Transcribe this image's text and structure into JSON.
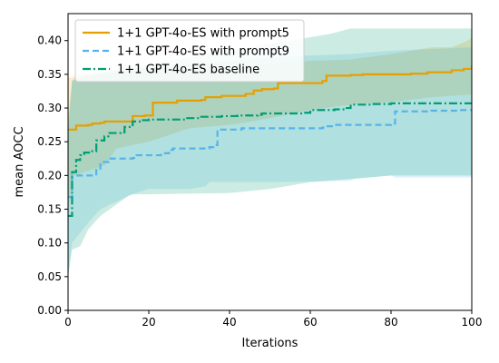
{
  "chart_data": {
    "type": "line",
    "title": "",
    "xlabel": "Iterations",
    "ylabel": "mean AOCC",
    "xlim": [
      0,
      100
    ],
    "ylim": [
      0,
      0.44
    ],
    "xticks": [
      0,
      20,
      40,
      60,
      80,
      100
    ],
    "yticks": [
      0.0,
      0.05,
      0.1,
      0.15,
      0.2,
      0.25,
      0.3,
      0.35,
      0.4
    ],
    "xtick_labels": [
      "0",
      "20",
      "40",
      "60",
      "80",
      "100"
    ],
    "ytick_labels": [
      "0.00",
      "0.05",
      "0.10",
      "0.15",
      "0.20",
      "0.25",
      "0.30",
      "0.35",
      "0.40"
    ],
    "grid": false,
    "legend_position": "top-left",
    "series": [
      {
        "name": "1+1 GPT-4o-ES with prompt5",
        "color": "#E69F00",
        "style": "solid",
        "mean": [
          [
            0,
            0.268
          ],
          [
            1,
            0.268
          ],
          [
            2,
            0.274
          ],
          [
            5,
            0.275
          ],
          [
            6,
            0.277
          ],
          [
            8,
            0.278
          ],
          [
            9,
            0.28
          ],
          [
            15,
            0.28
          ],
          [
            16,
            0.288
          ],
          [
            19,
            0.289
          ],
          [
            21,
            0.308
          ],
          [
            26,
            0.308
          ],
          [
            27,
            0.311
          ],
          [
            33,
            0.312
          ],
          [
            34,
            0.316
          ],
          [
            38,
            0.318
          ],
          [
            44,
            0.321
          ],
          [
            46,
            0.326
          ],
          [
            48,
            0.328
          ],
          [
            51,
            0.329
          ],
          [
            52,
            0.337
          ],
          [
            60,
            0.337
          ],
          [
            63,
            0.34
          ],
          [
            64,
            0.348
          ],
          [
            70,
            0.349
          ],
          [
            73,
            0.35
          ],
          [
            85,
            0.351
          ],
          [
            89,
            0.353
          ],
          [
            95,
            0.356
          ],
          [
            98,
            0.358
          ],
          [
            100,
            0.363
          ]
        ],
        "upper": [
          [
            0,
            0.345
          ],
          [
            1,
            0.345
          ],
          [
            2,
            0.35
          ],
          [
            15,
            0.357
          ],
          [
            20,
            0.358
          ],
          [
            30,
            0.36
          ],
          [
            40,
            0.362
          ],
          [
            50,
            0.366
          ],
          [
            60,
            0.37
          ],
          [
            70,
            0.372
          ],
          [
            80,
            0.38
          ],
          [
            85,
            0.385
          ],
          [
            90,
            0.39
          ],
          [
            95,
            0.39
          ],
          [
            99,
            0.4
          ],
          [
            100,
            0.405
          ]
        ],
        "lower": [
          [
            0,
            0.14
          ],
          [
            1,
            0.2
          ],
          [
            2,
            0.2
          ],
          [
            4,
            0.205
          ],
          [
            9,
            0.215
          ],
          [
            12,
            0.24
          ],
          [
            16,
            0.245
          ],
          [
            20,
            0.25
          ],
          [
            30,
            0.27
          ],
          [
            40,
            0.275
          ],
          [
            50,
            0.285
          ],
          [
            60,
            0.297
          ],
          [
            70,
            0.305
          ],
          [
            80,
            0.309
          ],
          [
            90,
            0.316
          ],
          [
            100,
            0.32
          ]
        ]
      },
      {
        "name": "1+1 GPT-4o-ES with prompt9",
        "color": "#56B4E9",
        "style": "dashed",
        "mean": [
          [
            0,
            0.168
          ],
          [
            1,
            0.2
          ],
          [
            6,
            0.2
          ],
          [
            7,
            0.21
          ],
          [
            8,
            0.22
          ],
          [
            10,
            0.225
          ],
          [
            16,
            0.226
          ],
          [
            17,
            0.23
          ],
          [
            22,
            0.23
          ],
          [
            23,
            0.233
          ],
          [
            25,
            0.238
          ],
          [
            26,
            0.24
          ],
          [
            35,
            0.242
          ],
          [
            36,
            0.245
          ],
          [
            37,
            0.268
          ],
          [
            43,
            0.27
          ],
          [
            63,
            0.271
          ],
          [
            64,
            0.273
          ],
          [
            66,
            0.275
          ],
          [
            80,
            0.277
          ],
          [
            81,
            0.295
          ],
          [
            90,
            0.296
          ],
          [
            97,
            0.297
          ],
          [
            100,
            0.298
          ]
        ],
        "upper": [
          [
            0,
            0.26
          ],
          [
            1,
            0.34
          ],
          [
            2,
            0.345
          ],
          [
            20,
            0.36
          ],
          [
            40,
            0.37
          ],
          [
            50,
            0.375
          ],
          [
            60,
            0.378
          ],
          [
            70,
            0.38
          ],
          [
            80,
            0.385
          ],
          [
            100,
            0.39
          ]
        ],
        "lower": [
          [
            0,
            0.05
          ],
          [
            1,
            0.1
          ],
          [
            3,
            0.115
          ],
          [
            5,
            0.13
          ],
          [
            8,
            0.15
          ],
          [
            15,
            0.17
          ],
          [
            16,
            0.172
          ],
          [
            20,
            0.18
          ],
          [
            30,
            0.18
          ],
          [
            34,
            0.184
          ],
          [
            35,
            0.19
          ],
          [
            50,
            0.19
          ],
          [
            60,
            0.191
          ],
          [
            70,
            0.192
          ],
          [
            71,
            0.195
          ],
          [
            80,
            0.2
          ],
          [
            81,
            0.197
          ],
          [
            90,
            0.197
          ],
          [
            100,
            0.197
          ]
        ]
      },
      {
        "name": "1+1 GPT-4o-ES baseline",
        "color": "#009E73",
        "style": "dashdot",
        "mean": [
          [
            0,
            0.14
          ],
          [
            1,
            0.205
          ],
          [
            2,
            0.223
          ],
          [
            3,
            0.23
          ],
          [
            4,
            0.234
          ],
          [
            6,
            0.236
          ],
          [
            7,
            0.252
          ],
          [
            9,
            0.258
          ],
          [
            10,
            0.263
          ],
          [
            13,
            0.264
          ],
          [
            14,
            0.272
          ],
          [
            16,
            0.28
          ],
          [
            18,
            0.282
          ],
          [
            20,
            0.283
          ],
          [
            28,
            0.283
          ],
          [
            29,
            0.285
          ],
          [
            33,
            0.287
          ],
          [
            36,
            0.287
          ],
          [
            38,
            0.288
          ],
          [
            42,
            0.289
          ],
          [
            47,
            0.29
          ],
          [
            48,
            0.292
          ],
          [
            58,
            0.293
          ],
          [
            60,
            0.297
          ],
          [
            63,
            0.297
          ],
          [
            66,
            0.298
          ],
          [
            69,
            0.3
          ],
          [
            70,
            0.305
          ],
          [
            75,
            0.306
          ],
          [
            80,
            0.307
          ],
          [
            100,
            0.308
          ]
        ],
        "upper": [
          [
            0,
            0.28
          ],
          [
            1,
            0.34
          ],
          [
            2,
            0.345
          ],
          [
            15,
            0.36
          ],
          [
            25,
            0.37
          ],
          [
            35,
            0.38
          ],
          [
            45,
            0.39
          ],
          [
            55,
            0.4
          ],
          [
            65,
            0.41
          ],
          [
            70,
            0.418
          ],
          [
            80,
            0.418
          ],
          [
            100,
            0.418
          ]
        ],
        "lower": [
          [
            0,
            0.05
          ],
          [
            1,
            0.09
          ],
          [
            3,
            0.095
          ],
          [
            5,
            0.12
          ],
          [
            8,
            0.14
          ],
          [
            15,
            0.17
          ],
          [
            16,
            0.172
          ],
          [
            20,
            0.172
          ],
          [
            30,
            0.173
          ],
          [
            40,
            0.174
          ],
          [
            50,
            0.18
          ],
          [
            60,
            0.19
          ],
          [
            70,
            0.195
          ],
          [
            80,
            0.2
          ],
          [
            100,
            0.2
          ]
        ]
      }
    ]
  }
}
